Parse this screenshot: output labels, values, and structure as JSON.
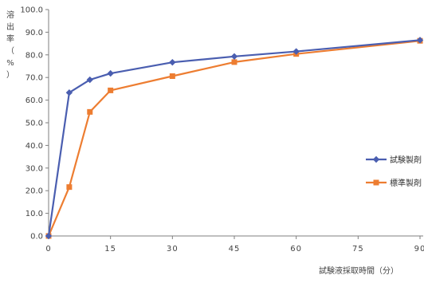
{
  "chart_data": {
    "type": "line",
    "title": "",
    "xlabel": "試験液採取時間（分）",
    "ylabel_chars": [
      "溶",
      "出",
      "率",
      "（",
      "%",
      "）"
    ],
    "x": [
      0,
      5,
      10,
      15,
      30,
      45,
      60,
      90
    ],
    "xticks": [
      "0",
      "15",
      "30",
      "45",
      "60",
      "75",
      "90"
    ],
    "xtick_values": [
      0,
      15,
      30,
      45,
      60,
      75,
      90
    ],
    "yticks": [
      "0.0",
      "10.0",
      "20.0",
      "30.0",
      "40.0",
      "50.0",
      "60.0",
      "70.0",
      "80.0",
      "90.0",
      "100.0"
    ],
    "ytick_values": [
      0,
      10,
      20,
      30,
      40,
      50,
      60,
      70,
      80,
      90,
      100
    ],
    "xlim": [
      0,
      90
    ],
    "ylim": [
      0,
      100
    ],
    "grid": false,
    "legend_position": "right",
    "series": [
      {
        "name": "試験製剤",
        "color": "#4a5eb0",
        "marker": "diamond",
        "values": [
          0,
          63.3,
          69.0,
          71.8,
          76.7,
          79.3,
          81.5,
          86.5
        ]
      },
      {
        "name": "標準製剤",
        "color": "#ed7d31",
        "marker": "square",
        "values": [
          0,
          21.6,
          54.8,
          64.3,
          70.6,
          76.8,
          80.4,
          86.2
        ]
      }
    ]
  }
}
